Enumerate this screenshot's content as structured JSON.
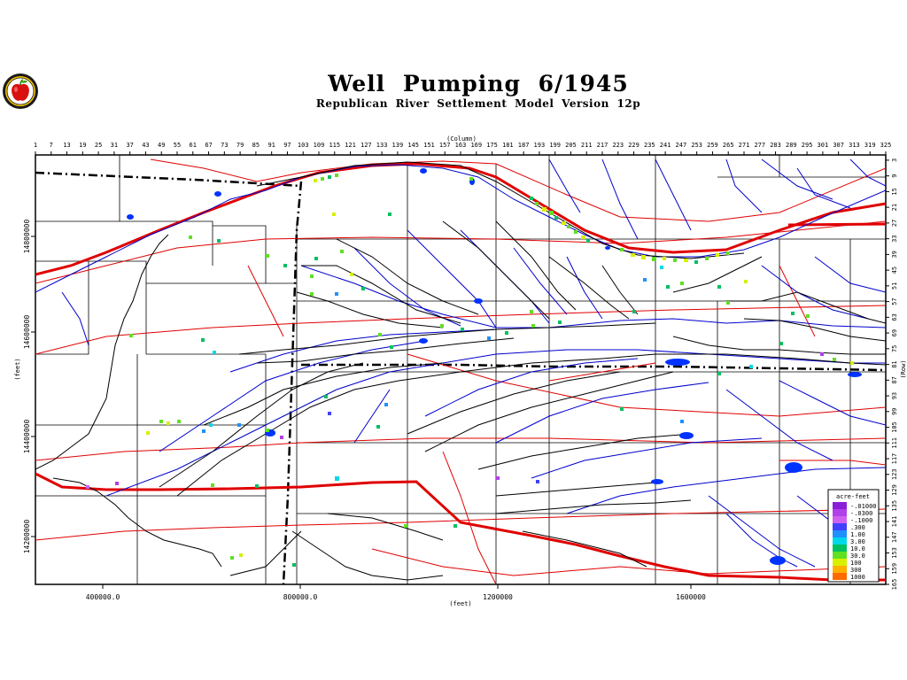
{
  "header": {
    "title": "Well Pumping   6/1945",
    "subtitle": "Republican River Settlement Model Version 12p"
  },
  "logo": {
    "icon": "apple-seal-icon"
  },
  "axes": {
    "column_label": "(Column)",
    "column_ticks": [
      1,
      7,
      13,
      19,
      25,
      31,
      37,
      43,
      49,
      55,
      61,
      67,
      73,
      79,
      85,
      91,
      97,
      103,
      109,
      115,
      121,
      127,
      133,
      139,
      145,
      151,
      157,
      163,
      169,
      175,
      181,
      187,
      193,
      199,
      205,
      211,
      217,
      223,
      229,
      235,
      241,
      247,
      253,
      259,
      265,
      271,
      277,
      283,
      289,
      295,
      301,
      307,
      313,
      319,
      325
    ],
    "row_label": "(Row)",
    "row_ticks": [
      3,
      9,
      15,
      21,
      27,
      33,
      39,
      45,
      51,
      57,
      63,
      69,
      75,
      81,
      87,
      93,
      99,
      105,
      111,
      117,
      123,
      129,
      135,
      141,
      147,
      153,
      159,
      165
    ],
    "x_label": "(feet)",
    "x_ticks": [
      "400000.0",
      "800000.0",
      "1200000",
      "1600000"
    ],
    "y_label": "(feet)",
    "y_ticks": [
      "14800000",
      "14600000",
      "14400000",
      "14200000"
    ]
  },
  "legend": {
    "title": "acre-feet",
    "items": [
      {
        "label": "-.01000",
        "color": "#8a1fd8"
      },
      {
        "label": "-.0300",
        "color": "#b040e8"
      },
      {
        "label": "-.1000",
        "color": "#d060f0"
      },
      {
        "label": ".300",
        "color": "#4040ff"
      },
      {
        "label": "1.00",
        "color": "#2090ff"
      },
      {
        "label": "3.00",
        "color": "#00d8e8"
      },
      {
        "label": "10.0",
        "color": "#00c060"
      },
      {
        "label": "30.0",
        "color": "#60e020"
      },
      {
        "label": "100",
        "color": "#d8f000"
      },
      {
        "label": "300",
        "color": "#ffb000"
      },
      {
        "label": "1000",
        "color": "#ff6a00"
      }
    ]
  },
  "colors": {
    "river": "#0000cc",
    "road": "#e00000",
    "county": "#000000",
    "water_body": "#0033ff"
  }
}
